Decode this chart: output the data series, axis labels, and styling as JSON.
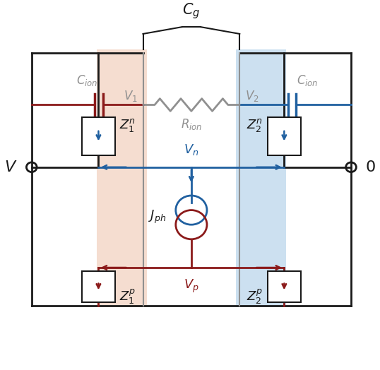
{
  "dark_red": "#8B1A1A",
  "blue": "#2060A0",
  "gray": "#909090",
  "black": "#1a1a1a",
  "bg_left": "#f5ddd0",
  "bg_right": "#cce0f0",
  "lw": 2.0,
  "fs": 13
}
